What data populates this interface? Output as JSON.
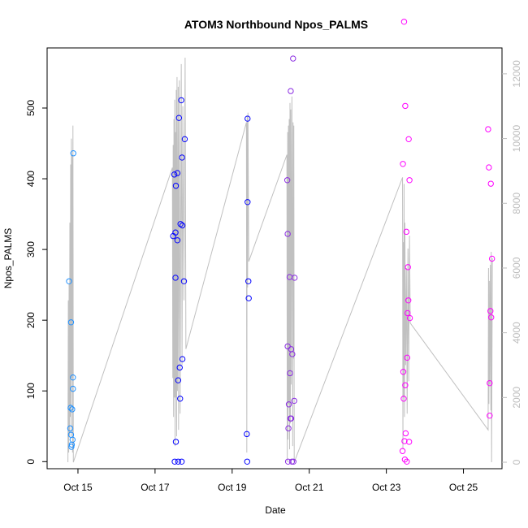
{
  "chart_data": {
    "type": "scatter",
    "title": "ATOM3 Northbound Npos_PALMS",
    "xlabel": "Date",
    "ylabel": "Npos_PALMS",
    "x_tick_labels": [
      "Oct 15",
      "Oct 17",
      "Oct 19",
      "Oct 21",
      "Oct 23",
      "Oct 25"
    ],
    "x_tick_days": [
      15,
      17,
      19,
      21,
      23,
      25
    ],
    "xlim_days": [
      14.2,
      26.0
    ],
    "ylim": [
      -10,
      585
    ],
    "y_ticks": [
      0,
      100,
      200,
      300,
      400,
      500
    ],
    "y2lim": [
      -200,
      12800
    ],
    "y2_ticks": [
      0,
      2000,
      4000,
      6000,
      8000,
      10000,
      12000
    ],
    "grid": false,
    "legend": "none",
    "colors": {
      "point_series_1": "#1e90ff",
      "point_series_2": "#0000ff",
      "point_series_3": "#8a2be2",
      "point_series_4": "#ff00ff",
      "line": "#c0c0c0"
    },
    "series": [
      {
        "color_key": "point_series_1",
        "points": [
          [
            14.77,
            255
          ],
          [
            14.8,
            47
          ],
          [
            14.81,
            76
          ],
          [
            14.82,
            197
          ],
          [
            14.82,
            38
          ],
          [
            14.83,
            21
          ],
          [
            14.84,
            24
          ],
          [
            14.85,
            74
          ],
          [
            14.86,
            31
          ],
          [
            14.87,
            119
          ],
          [
            14.87,
            103
          ],
          [
            14.88,
            436
          ]
        ]
      },
      {
        "color_key": "point_series_2",
        "points": [
          [
            17.47,
            319
          ],
          [
            17.5,
            406
          ],
          [
            17.51,
            0
          ],
          [
            17.53,
            324
          ],
          [
            17.53,
            260
          ],
          [
            17.54,
            390
          ],
          [
            17.54,
            28
          ],
          [
            17.58,
            408
          ],
          [
            17.58,
            313
          ],
          [
            17.6,
            115
          ],
          [
            17.6,
            0
          ],
          [
            17.62,
            486
          ],
          [
            17.64,
            133
          ],
          [
            17.65,
            89
          ],
          [
            17.66,
            336
          ],
          [
            17.68,
            511
          ],
          [
            17.69,
            0
          ],
          [
            17.7,
            430
          ],
          [
            17.71,
            334
          ],
          [
            17.71,
            145
          ],
          [
            17.75,
            255
          ],
          [
            17.77,
            456
          ]
        ]
      },
      {
        "color_key": "point_series_2",
        "points": [
          [
            19.38,
            39
          ],
          [
            19.39,
            0
          ],
          [
            19.4,
            485
          ],
          [
            19.4,
            367
          ],
          [
            19.42,
            255
          ],
          [
            19.43,
            231
          ]
        ]
      },
      {
        "color_key": "point_series_3",
        "points": [
          [
            20.43,
            398
          ],
          [
            20.44,
            163
          ],
          [
            20.44,
            322
          ],
          [
            20.45,
            0
          ],
          [
            20.46,
            47
          ],
          [
            20.47,
            81
          ],
          [
            20.49,
            261
          ],
          [
            20.5,
            125
          ],
          [
            20.51,
            61
          ],
          [
            20.52,
            524
          ],
          [
            20.53,
            61
          ],
          [
            20.53,
            159
          ],
          [
            20.55,
            0
          ],
          [
            20.56,
            152
          ],
          [
            20.58,
            570
          ],
          [
            20.59,
            0
          ],
          [
            20.61,
            86
          ],
          [
            20.62,
            260
          ]
        ]
      },
      {
        "color_key": "point_series_4",
        "points": [
          [
            23.42,
            15
          ],
          [
            23.43,
            421
          ],
          [
            23.44,
            127
          ],
          [
            23.45,
            89
          ],
          [
            23.46,
            622
          ],
          [
            23.47,
            29
          ],
          [
            23.48,
            3
          ],
          [
            23.49,
            108
          ],
          [
            23.49,
            503
          ],
          [
            23.5,
            40
          ],
          [
            23.52,
            325
          ],
          [
            23.53,
            0
          ],
          [
            23.54,
            147
          ],
          [
            23.55,
            210
          ],
          [
            23.56,
            275
          ],
          [
            23.57,
            228
          ],
          [
            23.58,
            456
          ],
          [
            23.59,
            28
          ],
          [
            23.6,
            398
          ],
          [
            23.61,
            203
          ]
        ]
      },
      {
        "color_key": "point_series_4",
        "points": [
          [
            25.64,
            470
          ],
          [
            25.66,
            416
          ],
          [
            25.68,
            111
          ],
          [
            25.68,
            65
          ],
          [
            25.7,
            213
          ],
          [
            25.71,
            393
          ],
          [
            25.72,
            204
          ],
          [
            25.74,
            287
          ]
        ]
      }
    ],
    "line_series": {
      "axis": "right",
      "points": [
        [
          14.74,
          0
        ],
        [
          14.75,
          5000
        ],
        [
          14.76,
          300
        ],
        [
          14.77,
          5500
        ],
        [
          14.78,
          800
        ],
        [
          14.79,
          7400
        ],
        [
          14.8,
          1400
        ],
        [
          14.81,
          9200
        ],
        [
          14.82,
          800
        ],
        [
          14.83,
          10000
        ],
        [
          14.84,
          2600
        ],
        [
          14.85,
          9500
        ],
        [
          14.86,
          300
        ],
        [
          14.87,
          10400
        ],
        [
          14.88,
          0
        ],
        [
          17.45,
          9100
        ],
        [
          17.46,
          2600
        ],
        [
          17.47,
          9800
        ],
        [
          17.48,
          1400
        ],
        [
          17.49,
          10600
        ],
        [
          17.5,
          2000
        ],
        [
          17.51,
          11200
        ],
        [
          17.52,
          500
        ],
        [
          17.53,
          10200
        ],
        [
          17.54,
          2000
        ],
        [
          17.55,
          11500
        ],
        [
          17.56,
          800
        ],
        [
          17.57,
          11900
        ],
        [
          17.58,
          2200
        ],
        [
          17.6,
          11600
        ],
        [
          17.61,
          1000
        ],
        [
          17.63,
          11800
        ],
        [
          17.65,
          1500
        ],
        [
          17.68,
          12300
        ],
        [
          17.7,
          3000
        ],
        [
          17.72,
          11000
        ],
        [
          17.75,
          5000
        ],
        [
          17.78,
          12500
        ],
        [
          17.8,
          3500
        ],
        [
          19.37,
          10500
        ],
        [
          19.38,
          300
        ],
        [
          19.39,
          10700
        ],
        [
          19.4,
          5400
        ],
        [
          19.41,
          10800
        ],
        [
          19.43,
          6200
        ],
        [
          20.42,
          9500
        ],
        [
          20.43,
          0
        ],
        [
          20.44,
          10200
        ],
        [
          20.45,
          700
        ],
        [
          20.46,
          10400
        ],
        [
          20.47,
          1800
        ],
        [
          20.48,
          10600
        ],
        [
          20.49,
          400
        ],
        [
          20.5,
          11100
        ],
        [
          20.51,
          1200
        ],
        [
          20.52,
          10900
        ],
        [
          20.53,
          2400
        ],
        [
          20.55,
          11300
        ],
        [
          20.57,
          500
        ],
        [
          20.58,
          10500
        ],
        [
          20.59,
          3200
        ],
        [
          20.6,
          10400
        ],
        [
          20.61,
          0
        ],
        [
          23.42,
          8800
        ],
        [
          23.43,
          400
        ],
        [
          23.44,
          6800
        ],
        [
          23.45,
          2000
        ],
        [
          23.46,
          8600
        ],
        [
          23.47,
          1400
        ],
        [
          23.48,
          7400
        ],
        [
          23.5,
          3000
        ],
        [
          23.52,
          6000
        ],
        [
          23.54,
          1500
        ],
        [
          23.56,
          6600
        ],
        [
          23.58,
          2500
        ],
        [
          23.6,
          7000
        ],
        [
          23.62,
          4300
        ],
        [
          25.64,
          1000
        ],
        [
          25.65,
          6000
        ],
        [
          25.66,
          1800
        ],
        [
          25.67,
          5600
        ],
        [
          25.68,
          2400
        ],
        [
          25.7,
          6100
        ],
        [
          25.71,
          1600
        ],
        [
          25.72,
          6500
        ],
        [
          25.73,
          0
        ],
        [
          25.75,
          6300
        ]
      ]
    }
  }
}
